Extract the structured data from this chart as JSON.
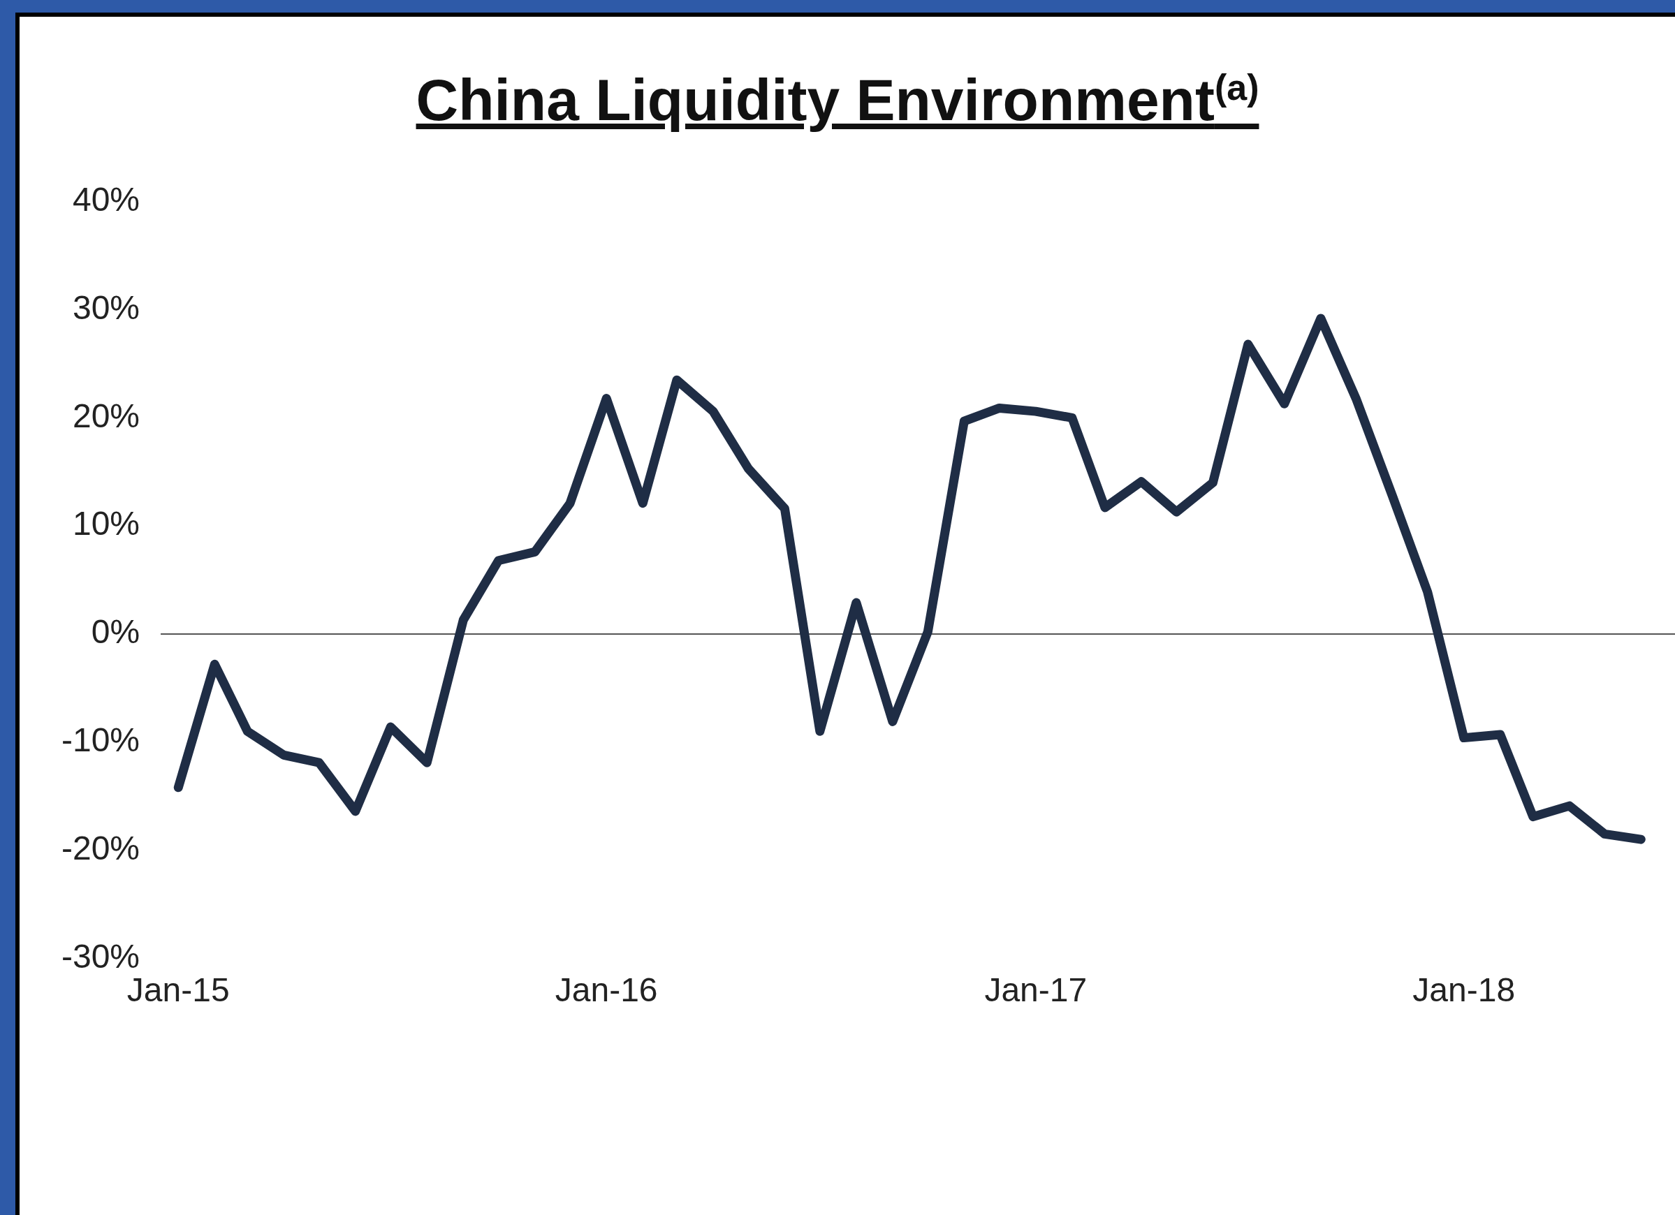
{
  "chart_data": {
    "type": "line",
    "title": "China Liquidity Environment$^{(a)}$",
    "x": [
      "2015-01",
      "2015-02",
      "2015-03",
      "2015-04",
      "2015-05",
      "2015-06",
      "2015-07",
      "2015-08",
      "2015-09",
      "2015-10",
      "2015-11",
      "2015-12",
      "2016-01",
      "2016-02",
      "2016-03",
      "2016-04",
      "2016-05",
      "2016-06",
      "2016-07",
      "2016-08",
      "2016-09",
      "2016-10",
      "2016-11",
      "2016-12",
      "2017-01",
      "2017-02",
      "2017-03",
      "2017-04",
      "2017-05",
      "2017-06",
      "2017-07",
      "2017-08",
      "2017-09",
      "2017-10",
      "2017-11",
      "2017-12",
      "2018-01",
      "2018-02",
      "2018-03",
      "2018-04",
      "2018-05",
      "2018-06"
    ],
    "series": [
      {
        "color": "#1f2d45",
        "values": [
          -14.2,
          -2.8,
          -9,
          -11.2,
          -11.9,
          -16.4,
          -8.6,
          -11.9,
          1.3,
          6.8,
          7.6,
          12.1,
          21.8,
          12.1,
          23.5,
          20.6,
          15.3,
          11.6,
          -9,
          2.9,
          -8.1,
          0.2,
          19.7,
          20.9,
          20.6,
          20,
          11.7,
          14.1,
          11.3,
          14,
          26.8,
          21.3,
          29.2,
          21.8,
          12.8,
          3.9,
          -9.6,
          -9.3,
          -16.9,
          -15.9,
          -18.5,
          -19
        ]
      }
    ],
    "xlim": [
      "2014-12-17",
      "2018-06-30"
    ],
    "xticks": [
      {
        "value": "2015-01",
        "label": "Jan-15"
      },
      {
        "value": "2016-01",
        "label": "Jan-16"
      },
      {
        "value": "2017-01",
        "label": "Jan-17"
      },
      {
        "value": "2018-01",
        "label": "Jan-18"
      }
    ],
    "ylim": [
      -30,
      40
    ],
    "yticks": [
      {
        "value": -30,
        "label": "-30%"
      },
      {
        "value": -20,
        "label": "-20%"
      },
      {
        "value": -10,
        "label": "-10%"
      },
      {
        "value": 0,
        "label": "0%"
      },
      {
        "value": 10,
        "label": "10%"
      },
      {
        "value": 20,
        "label": "20%"
      },
      {
        "value": 30,
        "label": "30%"
      },
      {
        "value": 40,
        "label": "40%"
      }
    ],
    "ref_lines": [
      {
        "axis": "y",
        "value": 0,
        "color": "#555555"
      }
    ],
    "grid": false,
    "legend": false,
    "marker": "none",
    "line_style": "solid"
  }
}
